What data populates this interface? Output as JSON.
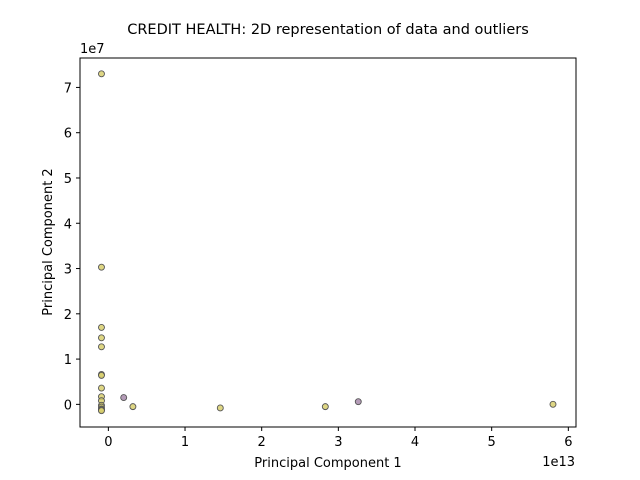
{
  "chart_data": {
    "type": "scatter",
    "title": "CREDIT HEALTH: 2D representation of data and outliers",
    "xlabel": "Principal Component 1",
    "ylabel": "Principal Component 2",
    "x_offset_label": "1e13",
    "y_offset_label": "1e7",
    "xlim": [
      -0.37,
      6.1
    ],
    "ylim": [
      -0.5,
      7.65
    ],
    "x_ticks": [
      0,
      1,
      2,
      3,
      4,
      5,
      6
    ],
    "y_ticks": [
      0,
      1,
      2,
      3,
      4,
      5,
      6,
      7
    ],
    "x_tick_labels": [
      "0",
      "1",
      "2",
      "3",
      "4",
      "5",
      "6"
    ],
    "y_tick_labels": [
      "0",
      "1",
      "2",
      "3",
      "4",
      "5",
      "6",
      "7"
    ],
    "grid": false,
    "colors": {
      "inlier": "#d8cf6e",
      "outlier": "#a78aaa",
      "edge": "#555555"
    },
    "series": [
      {
        "color": "#d8cf6e",
        "points": [
          [
            -0.09,
            7.3
          ],
          [
            -0.09,
            3.03
          ],
          [
            -0.09,
            1.7
          ],
          [
            -0.09,
            1.47
          ],
          [
            -0.09,
            1.27
          ],
          [
            -0.09,
            0.66
          ],
          [
            -0.09,
            0.64
          ],
          [
            -0.09,
            0.36
          ],
          [
            -0.09,
            0.17
          ],
          [
            -0.09,
            0.08
          ],
          [
            -0.09,
            -0.02
          ],
          [
            -0.09,
            -0.06
          ],
          [
            -0.09,
            -0.1
          ],
          [
            -0.09,
            -0.12
          ],
          [
            -0.09,
            -0.14
          ],
          [
            0.32,
            -0.05
          ],
          [
            1.46,
            -0.08
          ],
          [
            2.83,
            -0.05
          ],
          [
            5.8,
            0.0
          ]
        ]
      },
      {
        "color": "#a78aaa",
        "points": [
          [
            0.2,
            0.15
          ],
          [
            3.26,
            0.06
          ]
        ]
      }
    ]
  }
}
